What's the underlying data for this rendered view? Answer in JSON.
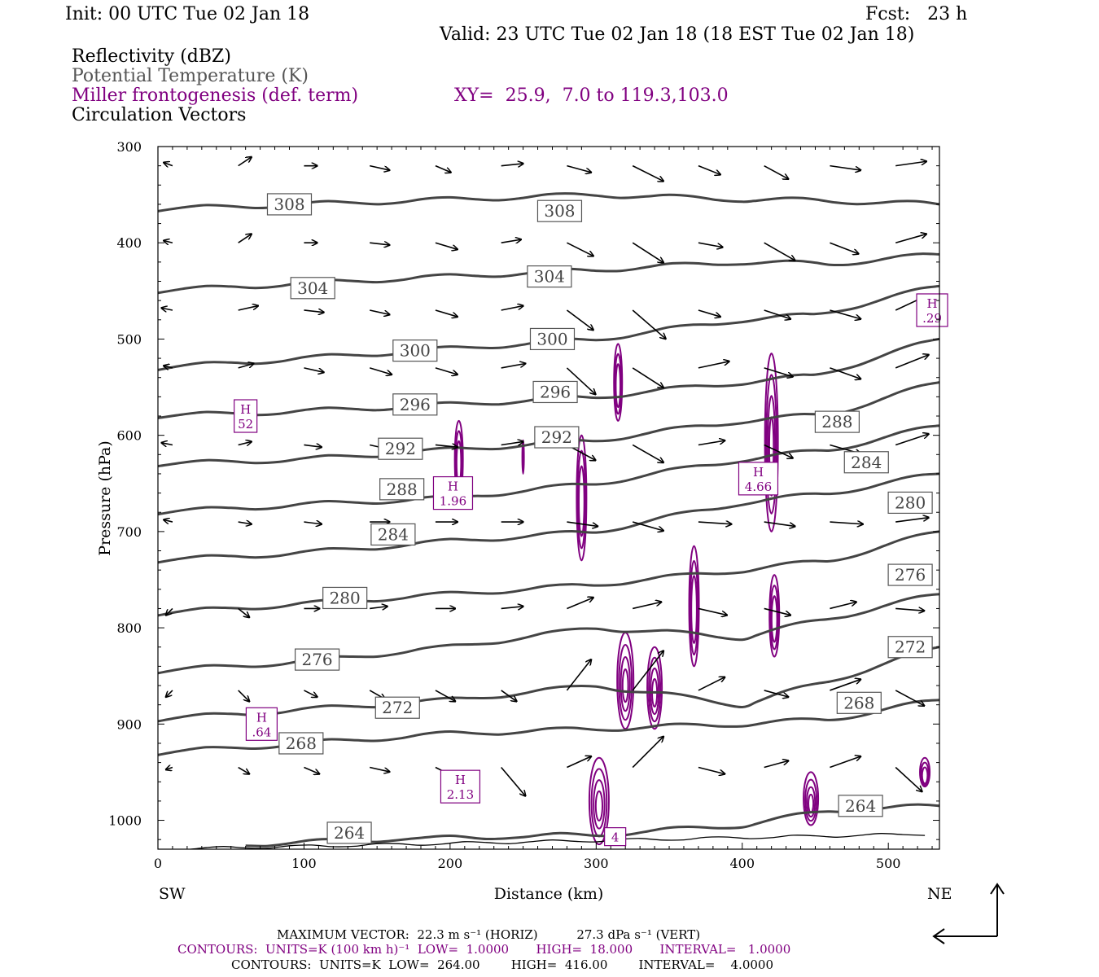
{
  "header": {
    "init": "Init: 00 UTC Tue 02 Jan 18",
    "fcst": "Fcst:   23 h",
    "valid": "Valid: 23 UTC Tue 02 Jan 18 (18 EST Tue 02 Jan 18)",
    "field1": "Reflectivity (dBZ)",
    "field2": "Potential Temperature (K)",
    "field3": "Miller frontogenesis (def. term)",
    "field4": "Circulation Vectors",
    "xy": "XY=  25.9,  7.0 to 119.3,103.0"
  },
  "colors": {
    "theta": "#444444",
    "frontogenesis": "#800080",
    "vectors": "#000000",
    "surface": "#000000"
  },
  "chart_data": {
    "type": "line",
    "xlabel": "Distance (km)",
    "ylabel": "Pressure (hPa)",
    "xlim": [
      0,
      535
    ],
    "ylim": [
      1030,
      300
    ],
    "y_reversed": true,
    "x_ticks": [
      "0",
      "100",
      "200",
      "300",
      "400",
      "500"
    ],
    "y_ticks": [
      "300",
      "400",
      "500",
      "600",
      "700",
      "800",
      "900",
      "1000"
    ],
    "x_end_labels": {
      "left": "SW",
      "right": "NE"
    },
    "theta_isentropes": [
      {
        "theta": 308,
        "p": [
          [
            0,
            365
          ],
          [
            100,
            360
          ],
          [
            200,
            355
          ],
          [
            300,
            350
          ],
          [
            400,
            355
          ],
          [
            450,
            356
          ],
          [
            535,
            360
          ]
        ]
      },
      {
        "theta": 304,
        "p": [
          [
            0,
            450
          ],
          [
            100,
            442
          ],
          [
            200,
            435
          ],
          [
            300,
            428
          ],
          [
            400,
            420
          ],
          [
            460,
            422
          ],
          [
            535,
            412
          ]
        ]
      },
      {
        "theta": 300,
        "p": [
          [
            0,
            530
          ],
          [
            100,
            520
          ],
          [
            200,
            510
          ],
          [
            300,
            500
          ],
          [
            400,
            480
          ],
          [
            450,
            475
          ],
          [
            535,
            445
          ]
        ]
      },
      {
        "theta": 296,
        "p": [
          [
            0,
            580
          ],
          [
            100,
            575
          ],
          [
            200,
            568
          ],
          [
            300,
            560
          ],
          [
            400,
            545
          ],
          [
            450,
            538
          ],
          [
            535,
            500
          ]
        ]
      },
      {
        "theta": 292,
        "p": [
          [
            0,
            630
          ],
          [
            100,
            625
          ],
          [
            200,
            615
          ],
          [
            300,
            605
          ],
          [
            400,
            585
          ],
          [
            460,
            578
          ],
          [
            535,
            545
          ]
        ]
      },
      {
        "theta": 288,
        "p": [
          [
            0,
            680
          ],
          [
            100,
            672
          ],
          [
            200,
            665
          ],
          [
            300,
            650
          ],
          [
            400,
            625
          ],
          [
            460,
            615
          ],
          [
            535,
            590
          ]
        ]
      },
      {
        "theta": 284,
        "p": [
          [
            0,
            730
          ],
          [
            100,
            722
          ],
          [
            200,
            710
          ],
          [
            300,
            700
          ],
          [
            400,
            670
          ],
          [
            460,
            660
          ],
          [
            535,
            640
          ]
        ]
      },
      {
        "theta": 280,
        "p": [
          [
            0,
            785
          ],
          [
            100,
            775
          ],
          [
            200,
            765
          ],
          [
            300,
            755
          ],
          [
            400,
            740
          ],
          [
            460,
            730
          ],
          [
            535,
            700
          ]
        ]
      },
      {
        "theta": 276,
        "p": [
          [
            0,
            845
          ],
          [
            100,
            835
          ],
          [
            200,
            820
          ],
          [
            300,
            800
          ],
          [
            400,
            810
          ],
          [
            460,
            790
          ],
          [
            535,
            765
          ]
        ]
      },
      {
        "theta": 272,
        "p": [
          [
            0,
            895
          ],
          [
            100,
            885
          ],
          [
            200,
            875
          ],
          [
            300,
            860
          ],
          [
            400,
            880
          ],
          [
            460,
            855
          ],
          [
            535,
            820
          ]
        ]
      },
      {
        "theta": 268,
        "p": [
          [
            0,
            930
          ],
          [
            100,
            920
          ],
          [
            200,
            910
          ],
          [
            300,
            905
          ],
          [
            400,
            900
          ],
          [
            460,
            895
          ],
          [
            535,
            875
          ]
        ]
      },
      {
        "theta": 264,
        "p": [
          [
            60,
            1025
          ],
          [
            150,
            1020
          ],
          [
            300,
            1015
          ],
          [
            400,
            1005
          ],
          [
            460,
            990
          ],
          [
            535,
            985
          ]
        ]
      }
    ],
    "theta_labels": [
      {
        "text": "308",
        "x": 90,
        "p": 360
      },
      {
        "text": "308",
        "x": 275,
        "p": 367
      },
      {
        "text": "304",
        "x": 106,
        "p": 447
      },
      {
        "text": "304",
        "x": 268,
        "p": 435
      },
      {
        "text": "300",
        "x": 176,
        "p": 512
      },
      {
        "text": "300",
        "x": 270,
        "p": 500
      },
      {
        "text": "296",
        "x": 176,
        "p": 568
      },
      {
        "text": "296",
        "x": 272,
        "p": 555
      },
      {
        "text": "292",
        "x": 166,
        "p": 614
      },
      {
        "text": "292",
        "x": 273,
        "p": 602
      },
      {
        "text": "288",
        "x": 167,
        "p": 656
      },
      {
        "text": "288",
        "x": 465,
        "p": 586
      },
      {
        "text": "284",
        "x": 161,
        "p": 703
      },
      {
        "text": "284",
        "x": 485,
        "p": 628
      },
      {
        "text": "280",
        "x": 128,
        "p": 769
      },
      {
        "text": "280",
        "x": 515,
        "p": 670
      },
      {
        "text": "276",
        "x": 109,
        "p": 833
      },
      {
        "text": "276",
        "x": 515,
        "p": 745
      },
      {
        "text": "272",
        "x": 164,
        "p": 883
      },
      {
        "text": "272",
        "x": 515,
        "p": 820
      },
      {
        "text": "268",
        "x": 98,
        "p": 920
      },
      {
        "text": "268",
        "x": 480,
        "p": 878
      },
      {
        "text": "264",
        "x": 131,
        "p": 1013
      },
      {
        "text": "264",
        "x": 481,
        "p": 985
      }
    ],
    "frontogenesis_maxima": [
      {
        "text": "H",
        "value": "52",
        "x": 60,
        "p": 580
      },
      {
        "text": "H",
        "value": "1.96",
        "x": 202,
        "p": 660
      },
      {
        "text": "H",
        "value": "4.66",
        "x": 411,
        "p": 645
      },
      {
        "text": "H",
        "value": ".29",
        "x": 530,
        "p": 470
      },
      {
        "text": "H",
        "value": ".64",
        "x": 71,
        "p": 900
      },
      {
        "text": "H",
        "value": "2.13",
        "x": 207,
        "p": 965
      },
      {
        "text": "",
        "value": "4",
        "x": 313,
        "p": 1017
      }
    ],
    "frontogenesis_cells": [
      {
        "x": 206,
        "p0": 585,
        "p1": 665,
        "w": 5
      },
      {
        "x": 250,
        "p0": 605,
        "p1": 640,
        "w": 1
      },
      {
        "x": 290,
        "p0": 600,
        "p1": 730,
        "w": 6
      },
      {
        "x": 315,
        "p0": 505,
        "p1": 585,
        "w": 5
      },
      {
        "x": 420,
        "p0": 515,
        "p1": 700,
        "w": 8
      },
      {
        "x": 367,
        "p0": 715,
        "p1": 840,
        "w": 6
      },
      {
        "x": 422,
        "p0": 745,
        "p1": 830,
        "w": 6
      },
      {
        "x": 320,
        "p0": 805,
        "p1": 905,
        "w": 10
      },
      {
        "x": 340,
        "p0": 820,
        "p1": 905,
        "w": 9
      },
      {
        "x": 302,
        "p0": 935,
        "p1": 1025,
        "w": 12
      },
      {
        "x": 447,
        "p0": 950,
        "p1": 1005,
        "w": 9
      },
      {
        "x": 525,
        "p0": 935,
        "p1": 965,
        "w": 6
      }
    ],
    "vector_rows": [
      320,
      400,
      470,
      530,
      610,
      690,
      780,
      865,
      945
    ],
    "vector_cols": [
      10,
      55,
      100,
      145,
      190,
      235,
      280,
      325,
      370,
      415,
      460,
      505
    ],
    "vectors": [
      [
        [
          -8,
          -3
        ],
        [
          12,
          -8
        ],
        [
          12,
          0
        ],
        [
          18,
          4
        ],
        [
          14,
          6
        ],
        [
          20,
          -2
        ],
        [
          22,
          6
        ],
        [
          28,
          14
        ],
        [
          20,
          8
        ],
        [
          22,
          12
        ],
        [
          28,
          4
        ],
        [
          28,
          -4
        ]
      ],
      [
        [
          -8,
          -2
        ],
        [
          12,
          -8
        ],
        [
          12,
          0
        ],
        [
          18,
          2
        ],
        [
          20,
          6
        ],
        [
          18,
          -3
        ],
        [
          24,
          12
        ],
        [
          28,
          18
        ],
        [
          22,
          4
        ],
        [
          28,
          16
        ],
        [
          26,
          10
        ],
        [
          28,
          -8
        ]
      ],
      [
        [
          -10,
          -2
        ],
        [
          18,
          -4
        ],
        [
          18,
          2
        ],
        [
          18,
          4
        ],
        [
          20,
          6
        ],
        [
          20,
          -4
        ],
        [
          24,
          18
        ],
        [
          30,
          26
        ],
        [
          20,
          6
        ],
        [
          24,
          8
        ],
        [
          28,
          8
        ],
        [
          30,
          -14
        ]
      ],
      [
        [
          -8,
          -2
        ],
        [
          14,
          -4
        ],
        [
          18,
          4
        ],
        [
          20,
          6
        ],
        [
          20,
          6
        ],
        [
          22,
          -4
        ],
        [
          26,
          24
        ],
        [
          28,
          18
        ],
        [
          28,
          -6
        ],
        [
          26,
          8
        ],
        [
          28,
          10
        ],
        [
          30,
          -12
        ]
      ],
      [
        [
          -10,
          -2
        ],
        [
          12,
          -3
        ],
        [
          16,
          2
        ],
        [
          18,
          4
        ],
        [
          20,
          2
        ],
        [
          20,
          -3
        ],
        [
          26,
          14
        ],
        [
          28,
          16
        ],
        [
          24,
          -4
        ],
        [
          26,
          12
        ],
        [
          28,
          8
        ],
        [
          30,
          -10
        ]
      ],
      [
        [
          -8,
          -2
        ],
        [
          12,
          2
        ],
        [
          16,
          2
        ],
        [
          18,
          0
        ],
        [
          20,
          0
        ],
        [
          20,
          0
        ],
        [
          28,
          4
        ],
        [
          28,
          8
        ],
        [
          30,
          2
        ],
        [
          28,
          4
        ],
        [
          30,
          2
        ],
        [
          30,
          -4
        ]
      ],
      [
        [
          -6,
          6
        ],
        [
          10,
          8
        ],
        [
          14,
          0
        ],
        [
          16,
          -2
        ],
        [
          18,
          0
        ],
        [
          20,
          -2
        ],
        [
          24,
          -10
        ],
        [
          26,
          -6
        ],
        [
          26,
          6
        ],
        [
          24,
          6
        ],
        [
          24,
          -6
        ],
        [
          26,
          2
        ]
      ],
      [
        [
          -6,
          6
        ],
        [
          10,
          10
        ],
        [
          12,
          6
        ],
        [
          14,
          8
        ],
        [
          18,
          10
        ],
        [
          14,
          10
        ],
        [
          22,
          -28
        ],
        [
          28,
          -36
        ],
        [
          24,
          -12
        ],
        [
          22,
          6
        ],
        [
          28,
          -10
        ],
        [
          26,
          14
        ]
      ],
      [
        [
          -6,
          2
        ],
        [
          10,
          6
        ],
        [
          14,
          6
        ],
        [
          18,
          4
        ],
        [
          20,
          10
        ],
        [
          22,
          26
        ],
        [
          22,
          -10
        ],
        [
          28,
          -28
        ],
        [
          24,
          6
        ],
        [
          22,
          -6
        ],
        [
          28,
          -10
        ],
        [
          24,
          22
        ]
      ]
    ],
    "footer": {
      "max_vector": "MAXIMUM VECTOR:  22.3 m s⁻¹ (HORIZ)          27.3 dPa s⁻¹ (VERT)",
      "contours1": "CONTOURS:  UNITS=K (100 km h)⁻¹  LOW=  1.0000       HIGH=  18.000       INTERVAL=   1.0000",
      "contours2": "CONTOURS:  UNITS=K  LOW=  264.00        HIGH=  416.00        INTERVAL=    4.0000"
    }
  }
}
